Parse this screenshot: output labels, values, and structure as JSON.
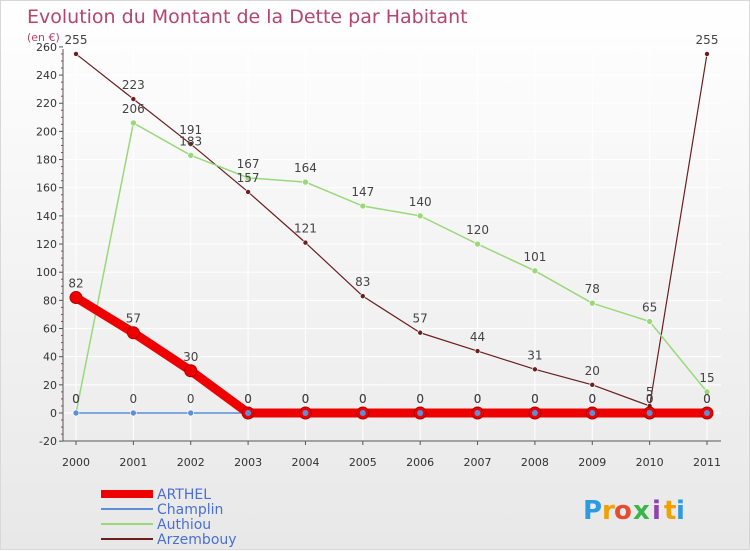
{
  "chart_data": {
    "type": "line",
    "title": "Evolution du Montant de la Dette par Habitant",
    "unit_label": "(en €)",
    "x": [
      "2000",
      "2001",
      "2002",
      "2003",
      "2004",
      "2005",
      "2006",
      "2007",
      "2008",
      "2009",
      "2010",
      "2011"
    ],
    "ylim": [
      -20,
      260
    ],
    "yticks": [
      -20,
      0,
      20,
      40,
      60,
      80,
      100,
      120,
      140,
      160,
      180,
      200,
      220,
      240,
      260
    ],
    "grid": true,
    "legend_position": "bottom-left",
    "series": [
      {
        "name": "Arzembouy",
        "color": "#6b1f1f",
        "width": 1.2,
        "marker": 2.5,
        "values": [
          255,
          223,
          191,
          157,
          121,
          83,
          57,
          44,
          31,
          20,
          5,
          255
        ],
        "labels": [
          "255",
          "223",
          "191",
          "157",
          "121",
          "83",
          "57",
          "44",
          "31",
          "20",
          "5",
          "255"
        ]
      },
      {
        "name": "Authiou",
        "color": "#99d97a",
        "width": 1.5,
        "marker": 3,
        "values": [
          0,
          206,
          183,
          167,
          164,
          147,
          140,
          120,
          101,
          78,
          65,
          15
        ],
        "labels": [
          "0",
          "206",
          "183",
          "167",
          "164",
          "147",
          "140",
          "120",
          "101",
          "78",
          "65",
          "15"
        ]
      },
      {
        "name": "Champlin",
        "color": "#5b8fd6",
        "width": 1.5,
        "marker": 3,
        "values": [
          0,
          0,
          0,
          0,
          0,
          0,
          0,
          0,
          0,
          0,
          0,
          0
        ],
        "labels": [
          "0",
          "0",
          "0",
          "0",
          "0",
          "0",
          "0",
          "0",
          "0",
          "0",
          "0",
          "0"
        ]
      },
      {
        "name": "ARTHEL",
        "color": "#ee0000",
        "width": 9,
        "marker": 6,
        "values": [
          82,
          57,
          30,
          0,
          0,
          0,
          0,
          0,
          0,
          0,
          0,
          0
        ],
        "labels": [
          "82",
          "57",
          "30",
          "0",
          "0",
          "0",
          "0",
          "0",
          "0",
          "0",
          "0",
          "0"
        ]
      }
    ],
    "legend": [
      "ARTHEL",
      "Champlin",
      "Authiou",
      "Arzembouy"
    ]
  },
  "logo": {
    "letters": [
      "P",
      "r",
      "o",
      "x",
      "i",
      "t",
      "i"
    ],
    "colors": [
      "#2e9be0",
      "#f2a100",
      "#e94b2f",
      "#3bb54a",
      "#8e44ad",
      "#f2a100",
      "#2e9be0"
    ]
  }
}
